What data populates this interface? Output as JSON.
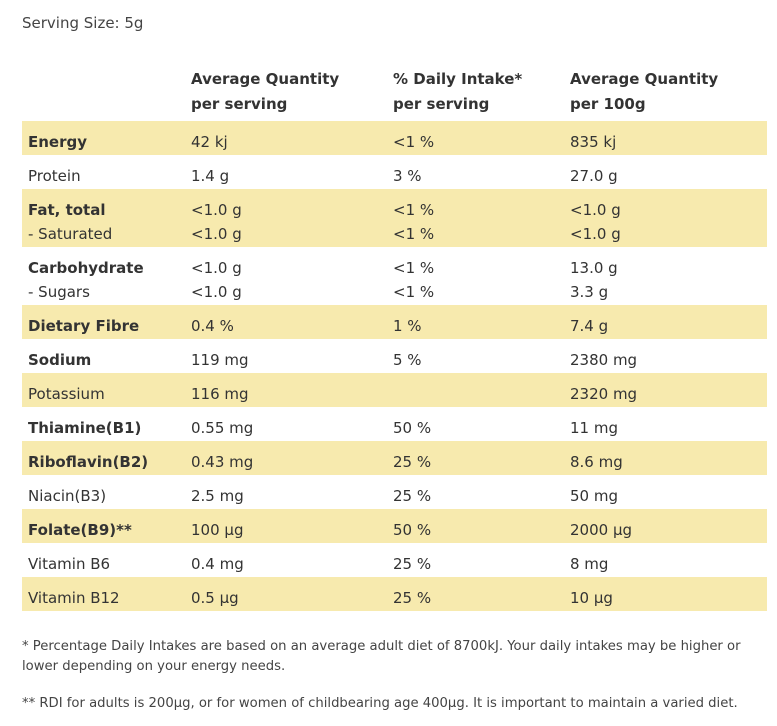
{
  "serving_size": "Serving Size: 5g",
  "headers": {
    "col1_line1": "Average Quantity",
    "col1_line2": "per serving",
    "col2_line1": "% Daily Intake*",
    "col2_line2": "per serving",
    "col3_line1": "Average Quantity",
    "col3_line2": "per 100g"
  },
  "rows": [
    {
      "name": "Energy",
      "per_serving": "42 kj",
      "daily_intake": "<1 %",
      "per_100g": "835 kj"
    },
    {
      "name": "Protein",
      "per_serving": "1.4 g",
      "daily_intake": "3 %",
      "per_100g": "27.0 g"
    },
    {
      "name": "Fat, total",
      "per_serving": "<1.0 g",
      "daily_intake": "<1 %",
      "per_100g": "<1.0 g",
      "sub_name": "- Saturated",
      "sub_per_serving": "<1.0 g",
      "sub_daily_intake": "<1 %",
      "sub_per_100g": "<1.0 g"
    },
    {
      "name": "Carbohydrate",
      "per_serving": "<1.0 g",
      "daily_intake": "<1 %",
      "per_100g": "13.0 g",
      "sub_name": "- Sugars",
      "sub_per_serving": "<1.0 g",
      "sub_daily_intake": "<1 %",
      "sub_per_100g": "3.3 g"
    },
    {
      "name": "Dietary Fibre",
      "per_serving": "0.4 %",
      "daily_intake": "1 %",
      "per_100g": "7.4 g"
    },
    {
      "name": "Sodium",
      "per_serving": "119 mg",
      "daily_intake": "5 %",
      "per_100g": "2380 mg"
    },
    {
      "name": "Potassium",
      "per_serving": "116 mg",
      "daily_intake": "",
      "per_100g": "2320 mg"
    },
    {
      "name": "Thiamine(B1)",
      "per_serving": "0.55 mg",
      "daily_intake": "50 %",
      "per_100g": "11 mg"
    },
    {
      "name": "Riboflavin(B2)",
      "per_serving": "0.43 mg",
      "daily_intake": "25 %",
      "per_100g": "8.6 mg"
    },
    {
      "name": "Niacin(B3)",
      "per_serving": "2.5 mg",
      "daily_intake": "25 %",
      "per_100g": "50 mg"
    },
    {
      "name": "Folate(B9)**",
      "per_serving": "100 µg",
      "daily_intake": "50 %",
      "per_100g": "2000 µg"
    },
    {
      "name": "Vitamin B6",
      "per_serving": "0.4 mg",
      "daily_intake": "25 %",
      "per_100g": "8 mg"
    },
    {
      "name": "Vitamin B12",
      "per_serving": "0.5 µg",
      "daily_intake": "25 %",
      "per_100g": "10 µg"
    }
  ],
  "footnotes": {
    "note1": "* Percentage Daily Intakes are based on an average adult diet of 8700kJ. Your daily intakes may be higher or lower depending on your energy needs.",
    "note2": "** RDI for adults is 200µg, or for women of childbearing age 400µg. It is important to maintain a varied diet."
  },
  "colors": {
    "row_shade": "#f7eaae",
    "text": "#333333"
  }
}
